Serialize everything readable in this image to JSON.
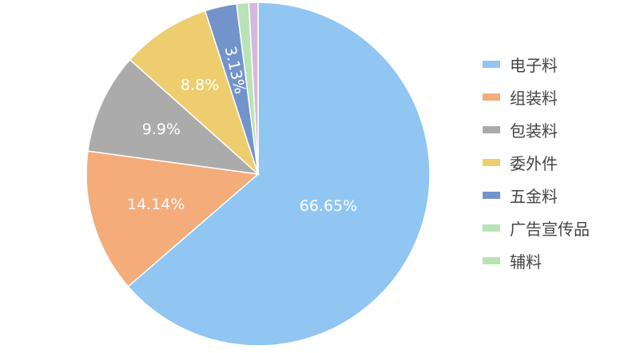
{
  "chart_data": {
    "type": "pie",
    "title": "",
    "legend_position": "right",
    "slices": [
      {
        "name": "电子料",
        "value": 66.65,
        "label": "66.65%",
        "color": "#90C6F1"
      },
      {
        "name": "组装料",
        "value": 14.14,
        "label": "14.14%",
        "color": "#F3AC7A"
      },
      {
        "name": "包装料",
        "value": 9.9,
        "label": "9.9%",
        "color": "#ABABAB"
      },
      {
        "name": "委外件",
        "value": 8.8,
        "label": "8.8%",
        "color": "#EDCD6E"
      },
      {
        "name": "五金料",
        "value": 3.13,
        "label": "3.13%",
        "color": "#7393CB"
      },
      {
        "name": "广告宣传品",
        "value": 1.2,
        "label": "",
        "color": "#B8E3B6"
      },
      {
        "name": "",
        "value": 0.9,
        "label": "",
        "color": "#D5B8DE"
      }
    ],
    "legend": [
      {
        "label": "电子料",
        "color": "#90C6F1"
      },
      {
        "label": "组装料",
        "color": "#F3AC7A"
      },
      {
        "label": "包装料",
        "color": "#ABABAB"
      },
      {
        "label": "委外件",
        "color": "#EDCD6E"
      },
      {
        "label": "五金料",
        "color": "#7393CB"
      },
      {
        "label": "广告宣传品",
        "color": "#B8E3B6"
      },
      {
        "label": "辅料",
        "color": "#B8E3B6"
      }
    ]
  }
}
